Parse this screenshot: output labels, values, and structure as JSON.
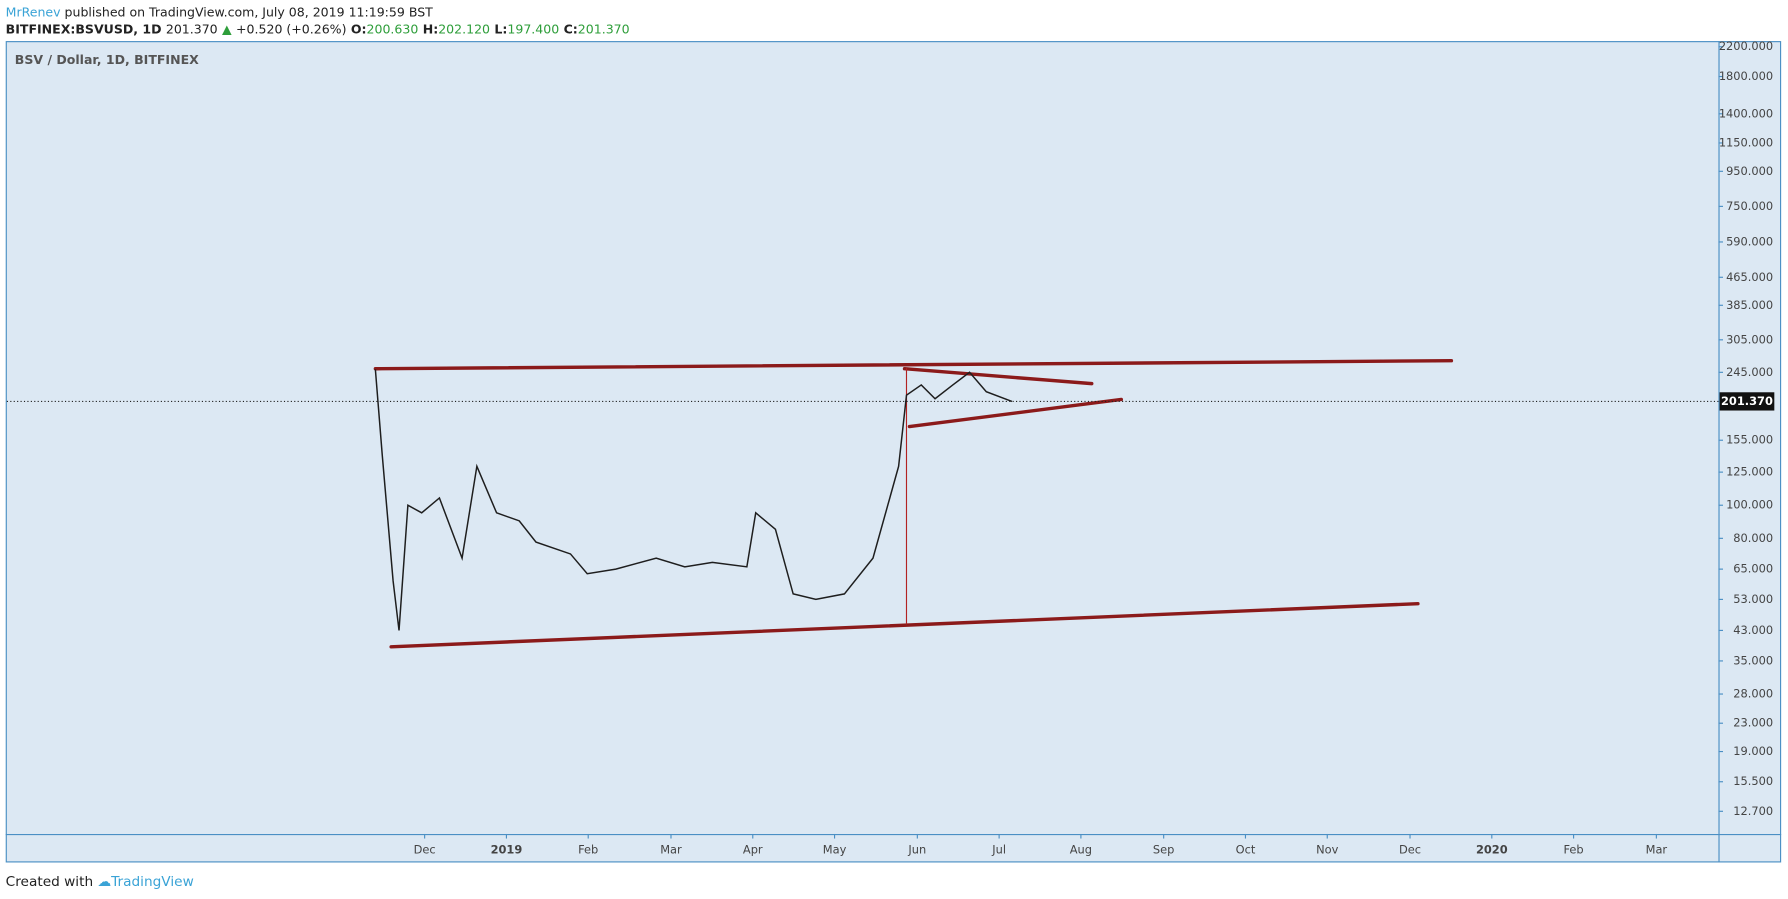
{
  "header": {
    "author": "MrRenev",
    "published": "published on TradingView.com, July 08, 2019 11:19:59 BST",
    "symbol": "BITFINEX:BSVUSD, 1D",
    "last": "201.370",
    "change": "+0.520 (+0.26%)",
    "o_label": "O:",
    "open": "200.630",
    "h_label": "H:",
    "high": "202.120",
    "l_label": "L:",
    "low": "197.400",
    "c_label": "C:",
    "close": "201.370"
  },
  "chart_data": {
    "type": "line",
    "title": "BSV / Dollar, 1D, BITFINEX",
    "log_scale": true,
    "grid": false,
    "xlim": [
      2018.493,
      2020.23
    ],
    "ylim": [
      10.9,
      2286
    ],
    "xticks": [
      {
        "value": 2018.917,
        "label": "Dec"
      },
      {
        "value": 2019.0,
        "label": "2019"
      },
      {
        "value": 2019.083,
        "label": "Feb"
      },
      {
        "value": 2019.167,
        "label": "Mar"
      },
      {
        "value": 2019.25,
        "label": "Apr"
      },
      {
        "value": 2019.333,
        "label": "May"
      },
      {
        "value": 2019.417,
        "label": "Jun"
      },
      {
        "value": 2019.5,
        "label": "Jul"
      },
      {
        "value": 2019.583,
        "label": "Aug"
      },
      {
        "value": 2019.667,
        "label": "Sep"
      },
      {
        "value": 2019.75,
        "label": "Oct"
      },
      {
        "value": 2019.833,
        "label": "Nov"
      },
      {
        "value": 2019.917,
        "label": "Dec"
      },
      {
        "value": 2020.0,
        "label": "2020"
      },
      {
        "value": 2020.083,
        "label": "Feb"
      },
      {
        "value": 2020.167,
        "label": "Mar"
      }
    ],
    "yticks": [
      {
        "value": 12.7,
        "label": "12.700"
      },
      {
        "value": 15.5,
        "label": "15.500"
      },
      {
        "value": 19,
        "label": "19.000"
      },
      {
        "value": 23,
        "label": "23.000"
      },
      {
        "value": 28,
        "label": "28.000"
      },
      {
        "value": 35,
        "label": "35.000"
      },
      {
        "value": 43,
        "label": "43.000"
      },
      {
        "value": 53,
        "label": "53.000"
      },
      {
        "value": 65,
        "label": "65.000"
      },
      {
        "value": 80,
        "label": "80.000"
      },
      {
        "value": 100,
        "label": "100.000"
      },
      {
        "value": 125,
        "label": "125.000"
      },
      {
        "value": 155,
        "label": "155.000"
      },
      {
        "value": 245,
        "label": "245.000"
      },
      {
        "value": 305,
        "label": "305.000"
      },
      {
        "value": 385,
        "label": "385.000"
      },
      {
        "value": 465,
        "label": "465.000"
      },
      {
        "value": 590,
        "label": "590.000"
      },
      {
        "value": 750,
        "label": "750.000"
      },
      {
        "value": 950,
        "label": "950.000"
      },
      {
        "value": 1150,
        "label": "1150.000"
      },
      {
        "value": 1400,
        "label": "1400.000"
      },
      {
        "value": 1800,
        "label": "1800.000"
      },
      {
        "value": 2200,
        "label": "2200.000"
      }
    ],
    "last_price": {
      "value": 201.37,
      "label": "201.370"
    },
    "series": [
      {
        "color": "#1e1e1e",
        "x": [
          2018.867,
          2018.874,
          2018.885,
          2018.891,
          2018.9,
          2018.914,
          2018.932,
          2018.955,
          2018.97,
          2018.99,
          2019.013,
          2019.03,
          2019.065,
          2019.082,
          2019.111,
          2019.152,
          2019.181,
          2019.209,
          2019.244,
          2019.253,
          2019.273,
          2019.291,
          2019.314,
          2019.343,
          2019.372,
          2019.387,
          2019.398,
          2019.406,
          2019.421,
          2019.435,
          2019.453,
          2019.47,
          2019.487,
          2019.513
        ],
        "values": [
          250,
          140,
          60,
          43,
          100,
          95,
          105,
          70,
          130,
          95,
          90,
          78,
          72,
          63,
          65,
          70,
          66,
          68,
          66,
          95,
          85,
          55,
          53,
          55,
          70,
          100,
          130,
          210,
          225,
          205,
          225,
          245,
          215,
          201.37
        ]
      }
    ],
    "trend_lines": [
      {
        "color": "#8b1a1a",
        "width": 3,
        "x": [
          2018.867,
          2019.959
        ],
        "values": [
          251,
          265
        ]
      },
      {
        "color": "#8b1a1a",
        "width": 3,
        "x": [
          2018.883,
          2019.925
        ],
        "values": [
          38.5,
          51.5
        ]
      },
      {
        "color": "#8b1a1a",
        "width": 3,
        "x": [
          2019.404,
          2019.594
        ],
        "values": [
          251,
          227
        ]
      },
      {
        "color": "#8b1a1a",
        "width": 3,
        "x": [
          2019.409,
          2019.624
        ],
        "values": [
          170,
          204
        ]
      },
      {
        "color": "#b22222",
        "width": 1,
        "x": [
          2019.406,
          2019.406
        ],
        "values": [
          251,
          44.9
        ]
      }
    ]
  },
  "footer": {
    "created": "Created with",
    "brand": "TradingView"
  }
}
